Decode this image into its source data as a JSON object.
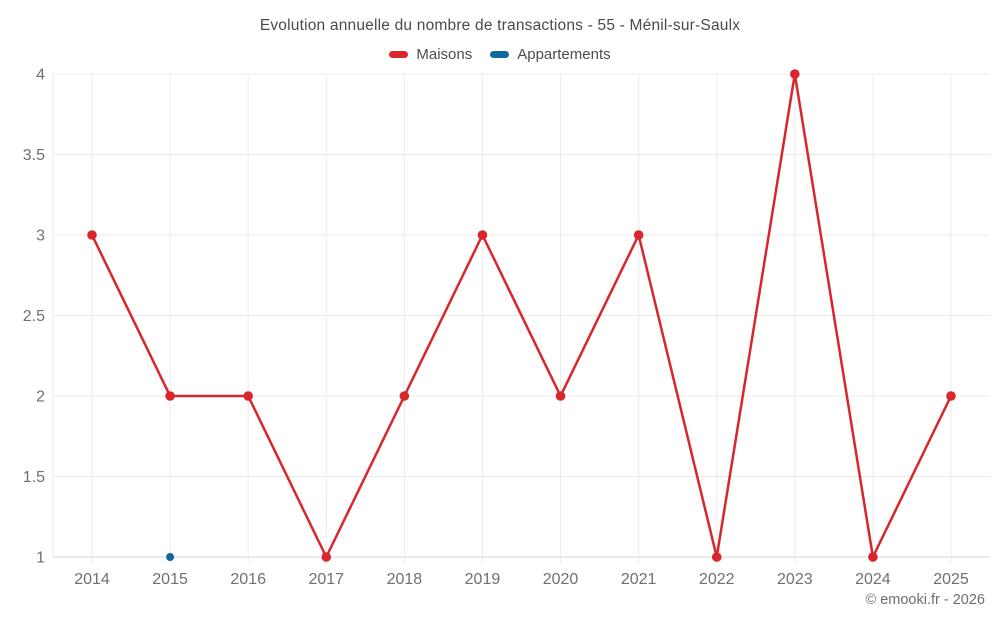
{
  "header": {
    "title": "Evolution annuelle du nombre de transactions - 55 - Ménil-sur-Saulx"
  },
  "legend": {
    "items": [
      {
        "label": "Maisons",
        "color": "#d8262c"
      },
      {
        "label": "Appartements",
        "color": "#1269a0"
      }
    ]
  },
  "watermark": "© emooki.fr - 2026",
  "colors": {
    "maisons": "#d8262c",
    "appartements": "#1269a0",
    "grid": "#ebebeb",
    "axis_line": "#d6d6d6",
    "axis_label": "#707070",
    "title": "#4a4a4a"
  },
  "chart_data": {
    "type": "line",
    "title": "Evolution annuelle du nombre de transactions - 55 - Ménil-sur-Saulx",
    "x": [
      2014,
      2015,
      2016,
      2017,
      2018,
      2019,
      2020,
      2021,
      2022,
      2023,
      2024,
      2025
    ],
    "series": [
      {
        "name": "Maisons",
        "color": "#d8262c",
        "values": [
          3,
          2,
          2,
          1,
          2,
          3,
          2,
          3,
          1,
          4,
          1,
          2
        ]
      },
      {
        "name": "Appartements",
        "color": "#1269a0",
        "values": [
          null,
          1,
          null,
          null,
          null,
          null,
          null,
          null,
          null,
          null,
          null,
          null
        ]
      }
    ],
    "xlabel": "",
    "ylabel": "",
    "ylim": [
      1,
      4
    ],
    "yticks": [
      1,
      1.5,
      2,
      2.5,
      3,
      3.5,
      4
    ],
    "grid": true,
    "legend_position": "top"
  }
}
